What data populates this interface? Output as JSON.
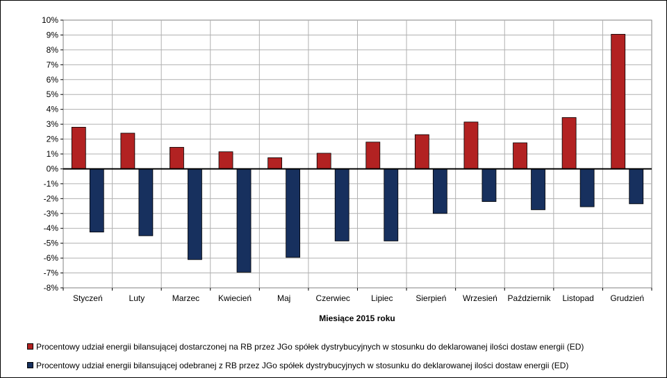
{
  "chart_data": {
    "type": "bar",
    "xlabel": "Miesiące 2015  roku",
    "ylabel": "",
    "ylim": [
      -8,
      10
    ],
    "yticks": [
      "-8%",
      "-7%",
      "-6%",
      "-5%",
      "-4%",
      "-3%",
      "-2%",
      "-1%",
      "0%",
      "1%",
      "2%",
      "3%",
      "4%",
      "5%",
      "6%",
      "7%",
      "8%",
      "9%",
      "10%"
    ],
    "grid": true,
    "legend_position": "bottom",
    "categories": [
      "Styczeń",
      "Luty",
      "Marzec",
      "Kwiecień",
      "Maj",
      "Czerwiec",
      "Lipiec",
      "Sierpień",
      "Wrzesień",
      "Październik",
      "Listopad",
      "Grudzień"
    ],
    "series": [
      {
        "name": "Procentowy udział energii bilansującej dostarczonej na RB przez JGo spółek dystrybucyjnych w stosunku do deklarowanej ilości dostaw energii (ED)",
        "color": "#b22222",
        "values": [
          2.8,
          2.4,
          1.45,
          1.15,
          0.75,
          1.05,
          1.8,
          2.3,
          3.15,
          1.75,
          3.45,
          9.05
        ]
      },
      {
        "name": "Procentowy udział energii bilansującej odebranej z RB przez JGo spółek dystrybucyjnych w stosunku do deklarowanej ilości dostaw energii (ED)",
        "color": "#17305e",
        "values": [
          -4.25,
          -4.5,
          -6.1,
          -6.95,
          -5.95,
          -4.85,
          -4.85,
          -3.0,
          -2.2,
          -2.75,
          -2.55,
          -2.35
        ]
      }
    ]
  }
}
